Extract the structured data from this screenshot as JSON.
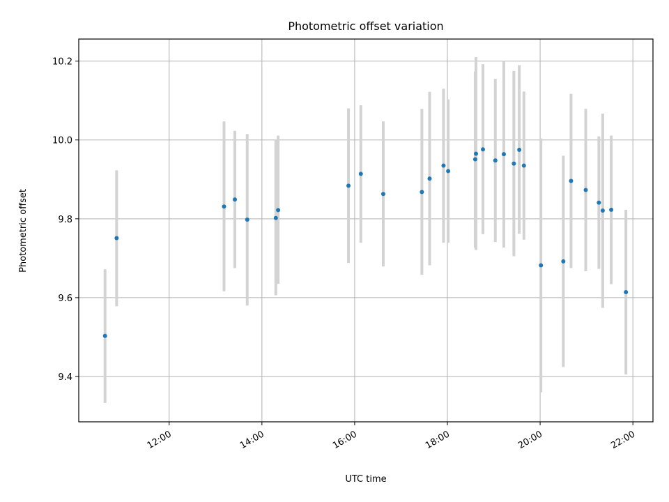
{
  "chart_data": {
    "type": "scatter",
    "title": "Photometric offset variation",
    "xlabel": "UTC time",
    "ylabel": "Photometric offset",
    "x_ticks": [
      "12:00",
      "14:00",
      "16:00",
      "18:00",
      "20:00",
      "22:00"
    ],
    "y_ticks": [
      "9.4",
      "9.6",
      "9.8",
      "10.0",
      "10.2"
    ],
    "xlim": [
      "10:03",
      "22:26"
    ],
    "ylim": [
      9.285,
      10.256
    ],
    "grid": true,
    "marker_color": "#1f77b4",
    "errorbar_color": "#d3d3d3",
    "series": [
      {
        "points": [
          {
            "x": "10:37",
            "y": 9.503,
            "y_low": 9.333,
            "y_high": 9.672
          },
          {
            "x": "10:52",
            "y": 9.751,
            "y_low": 9.578,
            "y_high": 9.923
          },
          {
            "x": "13:11",
            "y": 9.831,
            "y_low": 9.616,
            "y_high": 10.047
          },
          {
            "x": "13:25",
            "y": 9.849,
            "y_low": 9.675,
            "y_high": 10.023
          },
          {
            "x": "13:41",
            "y": 9.798,
            "y_low": 9.58,
            "y_high": 10.015
          },
          {
            "x": "14:18",
            "y": 9.802,
            "y_low": 9.606,
            "y_high": 10.0
          },
          {
            "x": "14:21",
            "y": 9.822,
            "y_low": 9.635,
            "y_high": 10.011
          },
          {
            "x": "15:52",
            "y": 9.884,
            "y_low": 9.688,
            "y_high": 10.08
          },
          {
            "x": "16:08",
            "y": 9.914,
            "y_low": 9.739,
            "y_high": 10.088
          },
          {
            "x": "16:37",
            "y": 9.863,
            "y_low": 9.679,
            "y_high": 10.047
          },
          {
            "x": "17:27",
            "y": 9.868,
            "y_low": 9.658,
            "y_high": 10.079
          },
          {
            "x": "17:37",
            "y": 9.902,
            "y_low": 9.682,
            "y_high": 10.122
          },
          {
            "x": "17:55",
            "y": 9.935,
            "y_low": 9.739,
            "y_high": 10.13
          },
          {
            "x": "18:01",
            "y": 9.921,
            "y_low": 9.739,
            "y_high": 10.103
          },
          {
            "x": "18:36",
            "y": 9.951,
            "y_low": 9.727,
            "y_high": 10.174
          },
          {
            "x": "18:37",
            "y": 9.965,
            "y_low": 9.721,
            "y_high": 10.21
          },
          {
            "x": "18:46",
            "y": 9.976,
            "y_low": 9.761,
            "y_high": 10.192
          },
          {
            "x": "19:02",
            "y": 9.948,
            "y_low": 9.741,
            "y_high": 10.155
          },
          {
            "x": "19:13",
            "y": 9.964,
            "y_low": 9.727,
            "y_high": 10.2
          },
          {
            "x": "19:26",
            "y": 9.94,
            "y_low": 9.705,
            "y_high": 10.175
          },
          {
            "x": "19:33",
            "y": 9.975,
            "y_low": 9.762,
            "y_high": 10.19
          },
          {
            "x": "19:39",
            "y": 9.935,
            "y_low": 9.747,
            "y_high": 10.123
          },
          {
            "x": "20:01",
            "y": 9.682,
            "y_low": 9.36,
            "y_high": 10.004
          },
          {
            "x": "20:30",
            "y": 9.692,
            "y_low": 9.424,
            "y_high": 9.96
          },
          {
            "x": "20:40",
            "y": 9.896,
            "y_low": 9.675,
            "y_high": 10.117
          },
          {
            "x": "20:59",
            "y": 9.873,
            "y_low": 9.667,
            "y_high": 10.079
          },
          {
            "x": "21:16",
            "y": 9.841,
            "y_low": 9.673,
            "y_high": 10.009
          },
          {
            "x": "21:21",
            "y": 9.821,
            "y_low": 9.574,
            "y_high": 10.067
          },
          {
            "x": "21:32",
            "y": 9.823,
            "y_low": 9.634,
            "y_high": 10.011
          },
          {
            "x": "21:51",
            "y": 9.614,
            "y_low": 9.405,
            "y_high": 9.823
          }
        ]
      }
    ]
  }
}
